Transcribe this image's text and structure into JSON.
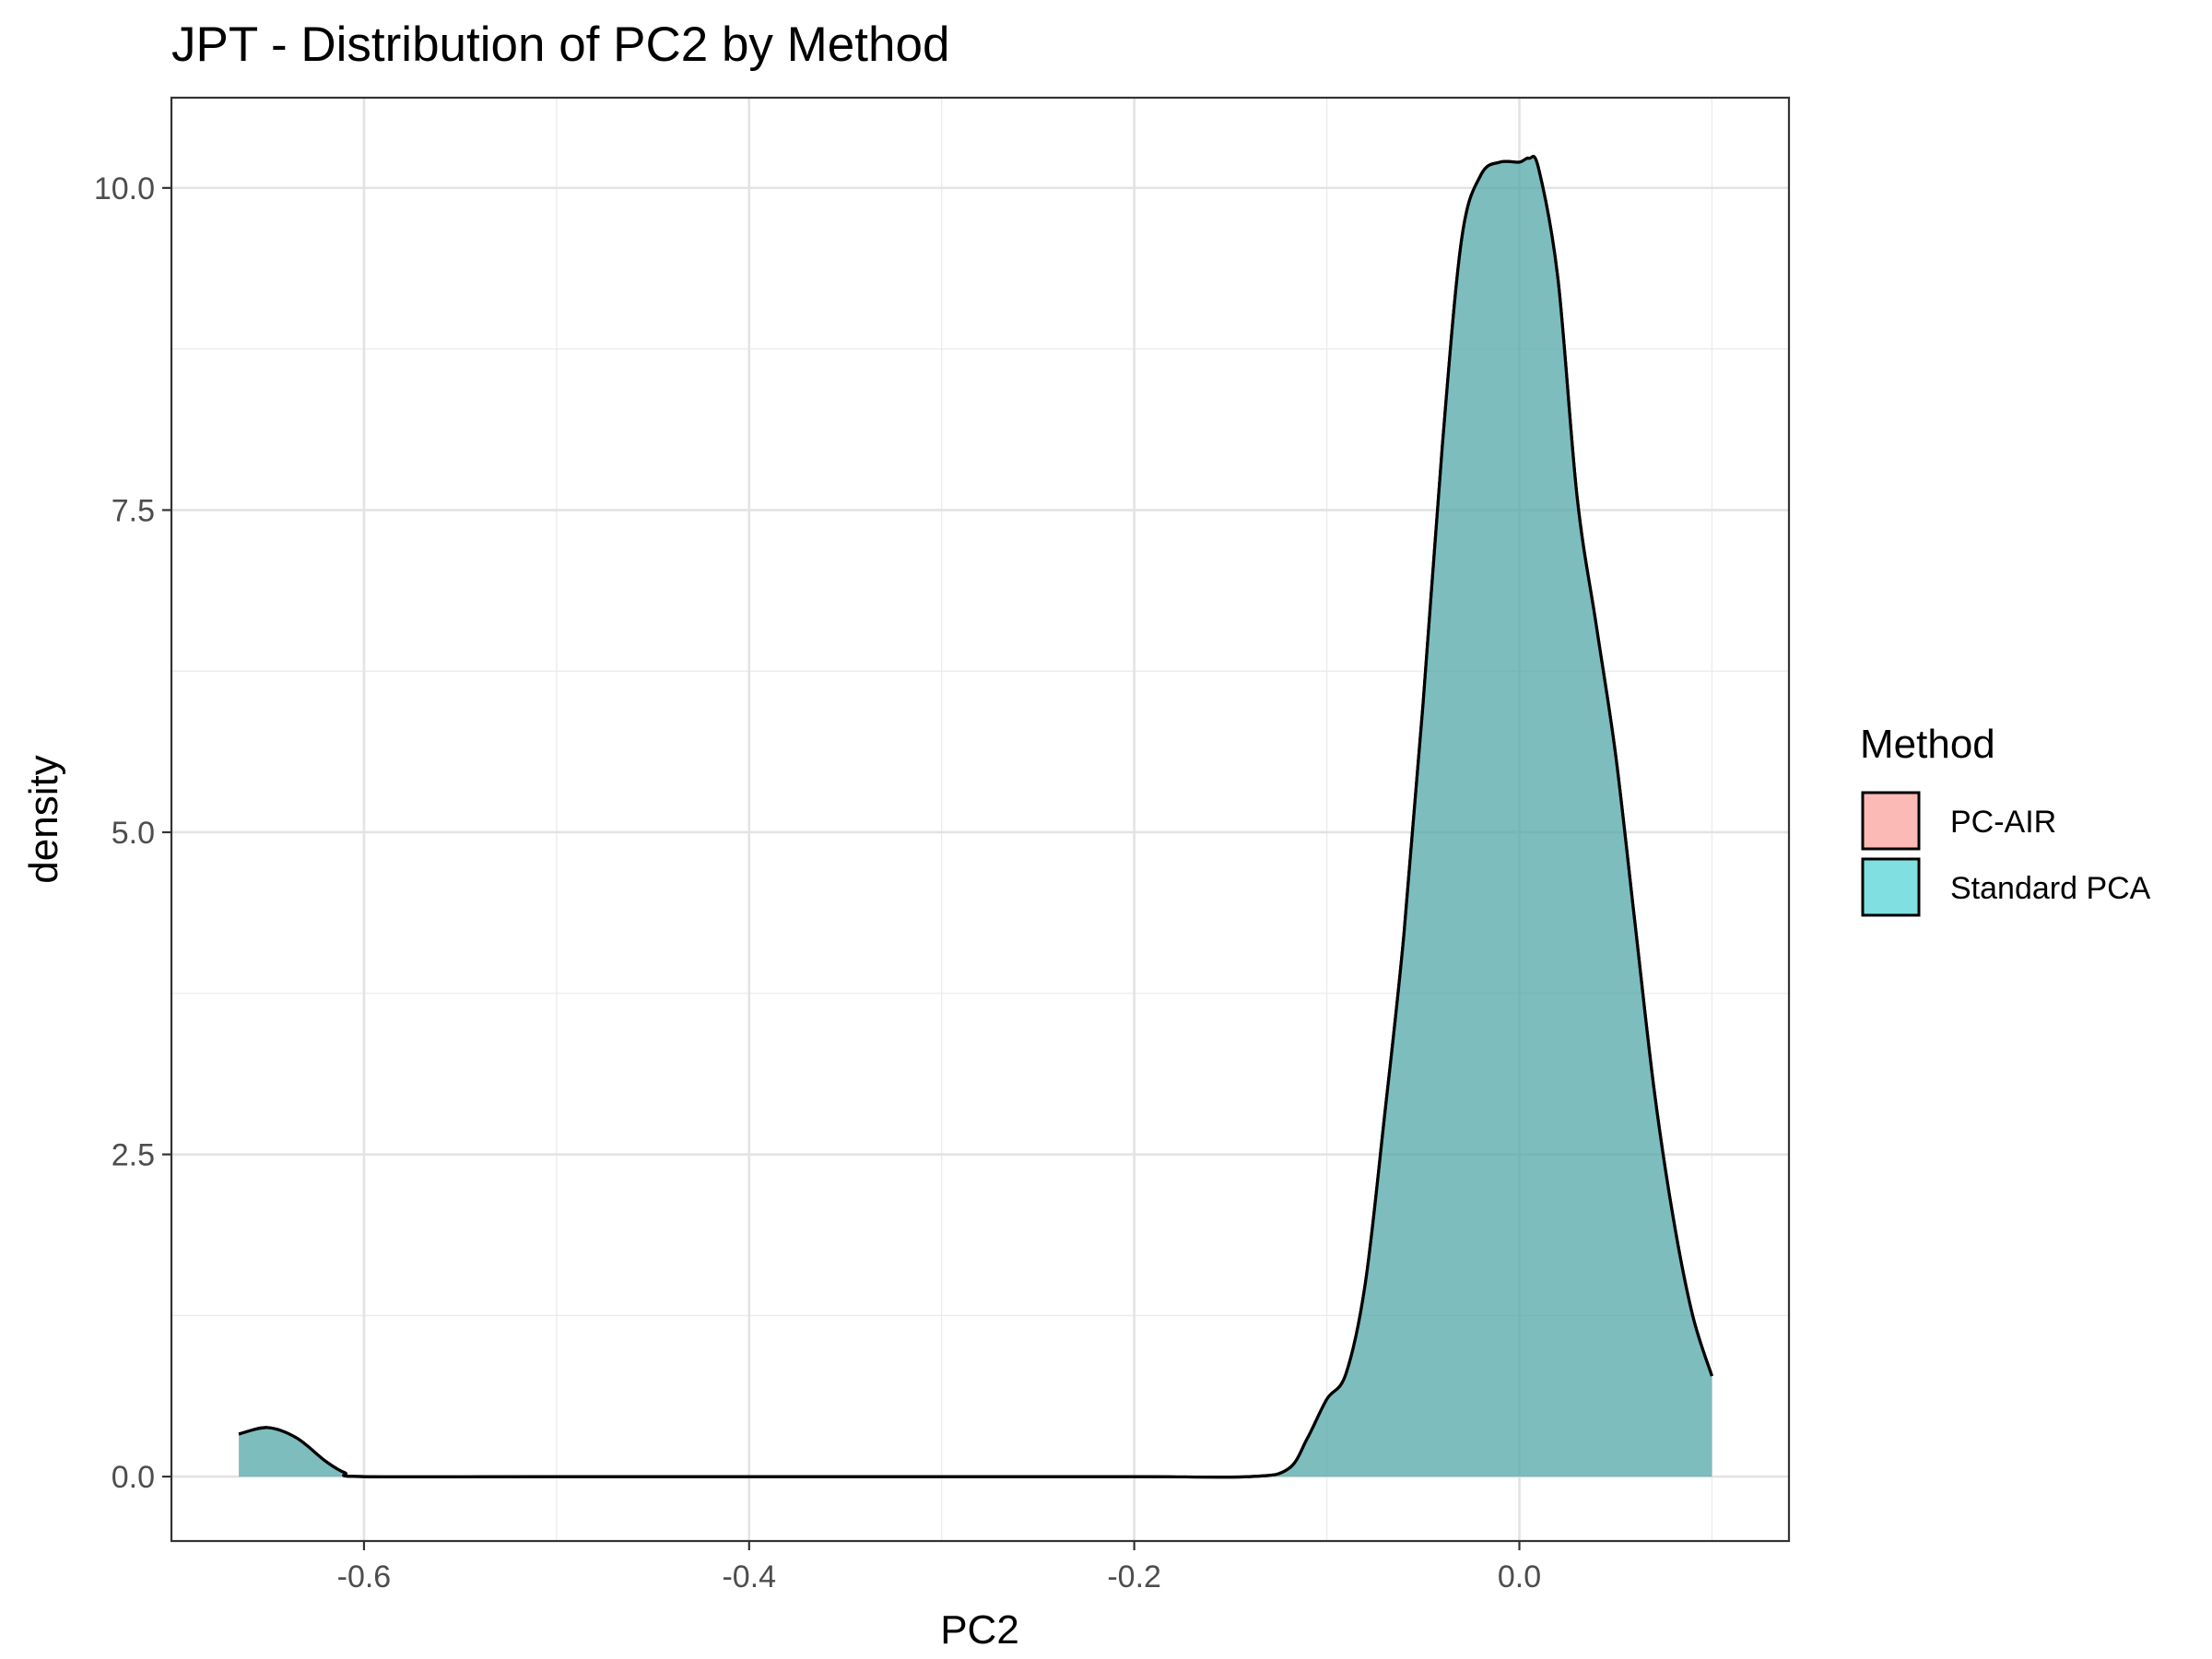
{
  "chart_data": {
    "type": "area",
    "title": "JPT - Distribution of PC2 by Method",
    "xlabel": "PC2",
    "ylabel": "density",
    "xlim": [
      -0.7,
      0.14
    ],
    "ylim": [
      -0.5,
      10.7
    ],
    "x_ticks": [
      -0.6,
      -0.4,
      -0.2,
      0.0
    ],
    "x_tick_labels": [
      "-0.6",
      "-0.4",
      "-0.2",
      "0.0"
    ],
    "y_ticks": [
      0.0,
      2.5,
      5.0,
      7.5,
      10.0
    ],
    "y_tick_labels": [
      "0.0",
      "2.5",
      "5.0",
      "7.5",
      "10.0"
    ],
    "grid": true,
    "legend": {
      "title": "Method",
      "position": "right",
      "entries": [
        {
          "name": "PC-AIR",
          "color": "#F8766D"
        },
        {
          "name": "Standard PCA",
          "color": "#00BFC4"
        }
      ]
    },
    "fill_alpha": 0.5,
    "series": [
      {
        "name": "PC-AIR",
        "x": [
          -0.665,
          -0.65,
          -0.635,
          -0.62,
          -0.61,
          -0.6,
          -0.5,
          -0.4,
          -0.3,
          -0.2,
          -0.14,
          -0.12,
          -0.11,
          -0.1,
          -0.09,
          -0.08,
          -0.07,
          -0.06,
          -0.05,
          -0.04,
          -0.03,
          -0.02,
          -0.01,
          0.0,
          0.005,
          0.01,
          0.02,
          0.03,
          0.04,
          0.05,
          0.06,
          0.07,
          0.08,
          0.09,
          0.1
        ],
        "y": [
          0.33,
          0.38,
          0.3,
          0.12,
          0.03,
          0.0,
          0.0,
          0.0,
          0.0,
          0.0,
          0.0,
          0.06,
          0.3,
          0.6,
          0.8,
          1.5,
          2.8,
          4.2,
          6.0,
          8.0,
          9.6,
          10.1,
          10.2,
          10.2,
          10.23,
          10.15,
          9.3,
          7.6,
          6.6,
          5.6,
          4.3,
          3.0,
          2.0,
          1.25,
          0.78
        ]
      },
      {
        "name": "Standard PCA",
        "x": [
          -0.665,
          -0.65,
          -0.635,
          -0.62,
          -0.61,
          -0.6,
          -0.5,
          -0.4,
          -0.3,
          -0.2,
          -0.14,
          -0.12,
          -0.11,
          -0.1,
          -0.09,
          -0.08,
          -0.07,
          -0.06,
          -0.05,
          -0.04,
          -0.03,
          -0.02,
          -0.01,
          0.0,
          0.005,
          0.01,
          0.02,
          0.03,
          0.04,
          0.05,
          0.06,
          0.07,
          0.08,
          0.09,
          0.1
        ],
        "y": [
          0.33,
          0.38,
          0.3,
          0.12,
          0.03,
          0.0,
          0.0,
          0.0,
          0.0,
          0.0,
          0.0,
          0.06,
          0.3,
          0.6,
          0.8,
          1.5,
          2.8,
          4.2,
          6.0,
          8.0,
          9.6,
          10.1,
          10.2,
          10.2,
          10.23,
          10.15,
          9.3,
          7.6,
          6.6,
          5.6,
          4.3,
          3.0,
          2.0,
          1.25,
          0.78
        ]
      }
    ]
  }
}
